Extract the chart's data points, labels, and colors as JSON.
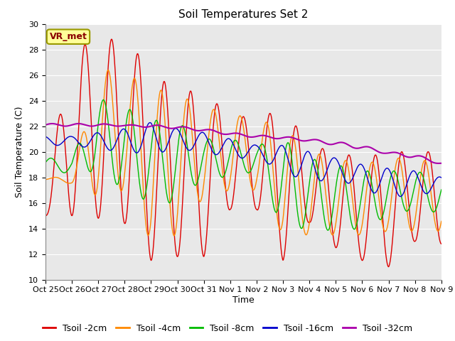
{
  "title": "Soil Temperatures Set 2",
  "xlabel": "Time",
  "ylabel": "Soil Temperature (C)",
  "ylim": [
    10,
    30
  ],
  "fig_bg_color": "#ffffff",
  "plot_bg_color": "#e8e8e8",
  "annotation_text": "VR_met",
  "annotation_box_facecolor": "#ffff99",
  "annotation_box_edgecolor": "#999900",
  "annotation_text_color": "#8b0000",
  "legend_labels": [
    "Tsoil -2cm",
    "Tsoil -4cm",
    "Tsoil -8cm",
    "Tsoil -16cm",
    "Tsoil -32cm"
  ],
  "line_colors": [
    "#dd0000",
    "#ff8800",
    "#00bb00",
    "#0000cc",
    "#aa00aa"
  ],
  "tick_labels": [
    "Oct 25",
    "Oct 26",
    "Oct 27",
    "Oct 28",
    "Oct 29",
    "Oct 30",
    "Oct 31",
    "Nov 1",
    "Nov 2",
    "Nov 3",
    "Nov 4",
    "Nov 5",
    "Nov 6",
    "Nov 7",
    "Nov 8",
    "Nov 9"
  ],
  "grid_color": "#ffffff",
  "title_fontsize": 11,
  "axis_fontsize": 9,
  "tick_fontsize": 8,
  "legend_fontsize": 9
}
